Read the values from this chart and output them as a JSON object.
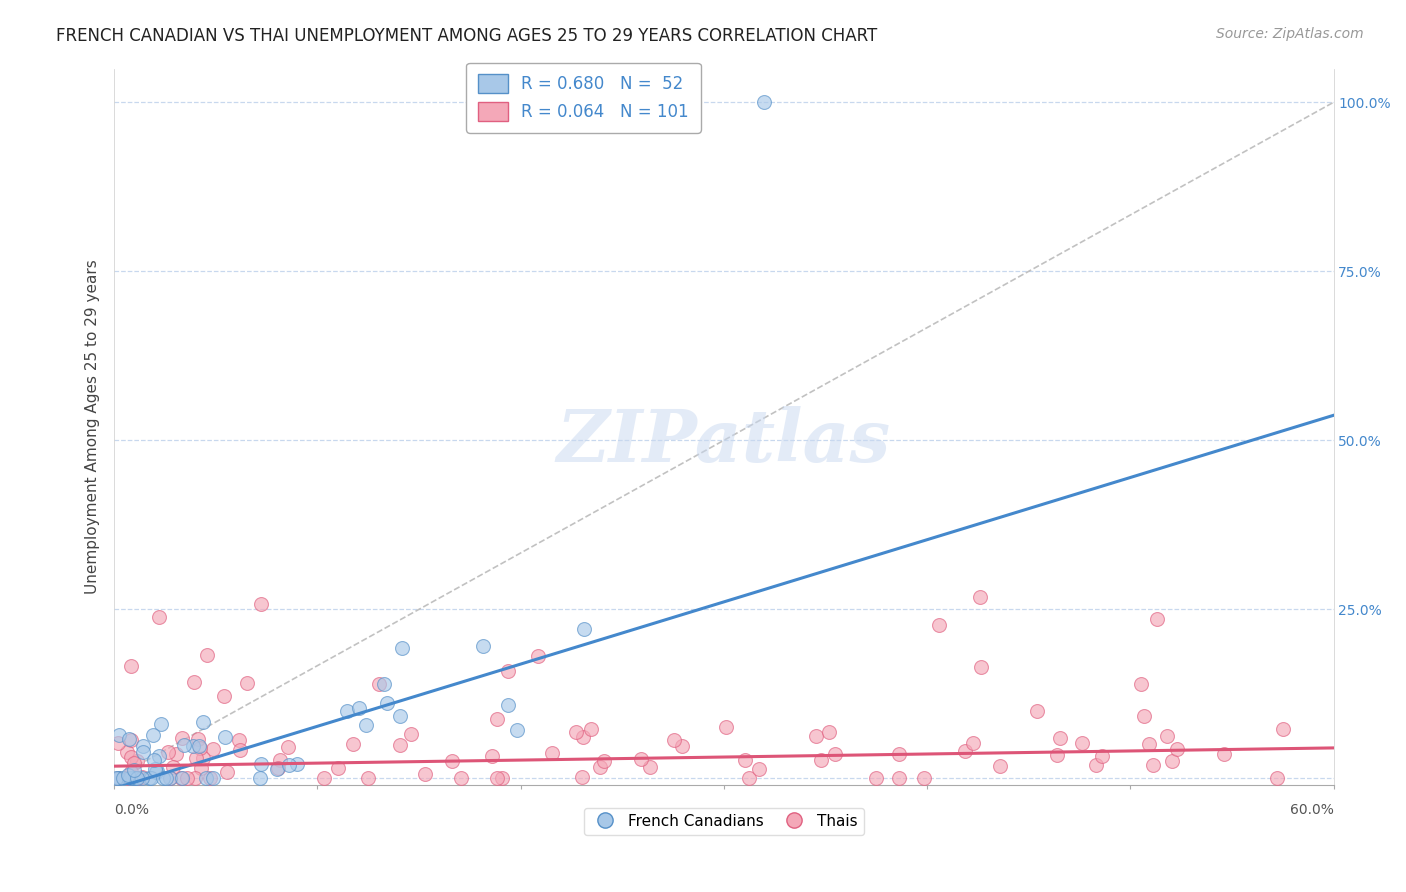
{
  "title": "FRENCH CANADIAN VS THAI UNEMPLOYMENT AMONG AGES 25 TO 29 YEARS CORRELATION CHART",
  "source": "Source: ZipAtlas.com",
  "ylabel": "Unemployment Among Ages 25 to 29 years",
  "legend_bottom": [
    "French Canadians",
    "Thais"
  ],
  "fc_color": "#a8c8e8",
  "fc_edge_color": "#5590c8",
  "thai_color": "#f4a8b8",
  "thai_edge_color": "#e06080",
  "fc_line_color": "#4488cc",
  "thai_line_color": "#dd5577",
  "ref_line_color": "#bbbbbb",
  "background_color": "#ffffff",
  "grid_color": "#c8d8ee",
  "watermark_color": "#c8d8f0",
  "ytick_color": "#4488cc",
  "xlim": [
    0,
    60
  ],
  "ylim": [
    -1,
    105
  ],
  "ytick_values": [
    0,
    25,
    50,
    75,
    100
  ],
  "ytick_labels": [
    "",
    "25.0%",
    "50.0%",
    "75.0%",
    "100.0%"
  ],
  "fc_slope": 0.92,
  "fc_intercept": -1.5,
  "thai_slope": 0.045,
  "thai_intercept": 1.8,
  "title_fontsize": 12,
  "source_fontsize": 10,
  "axis_label_fontsize": 11,
  "tick_fontsize": 10,
  "legend_fontsize": 12
}
